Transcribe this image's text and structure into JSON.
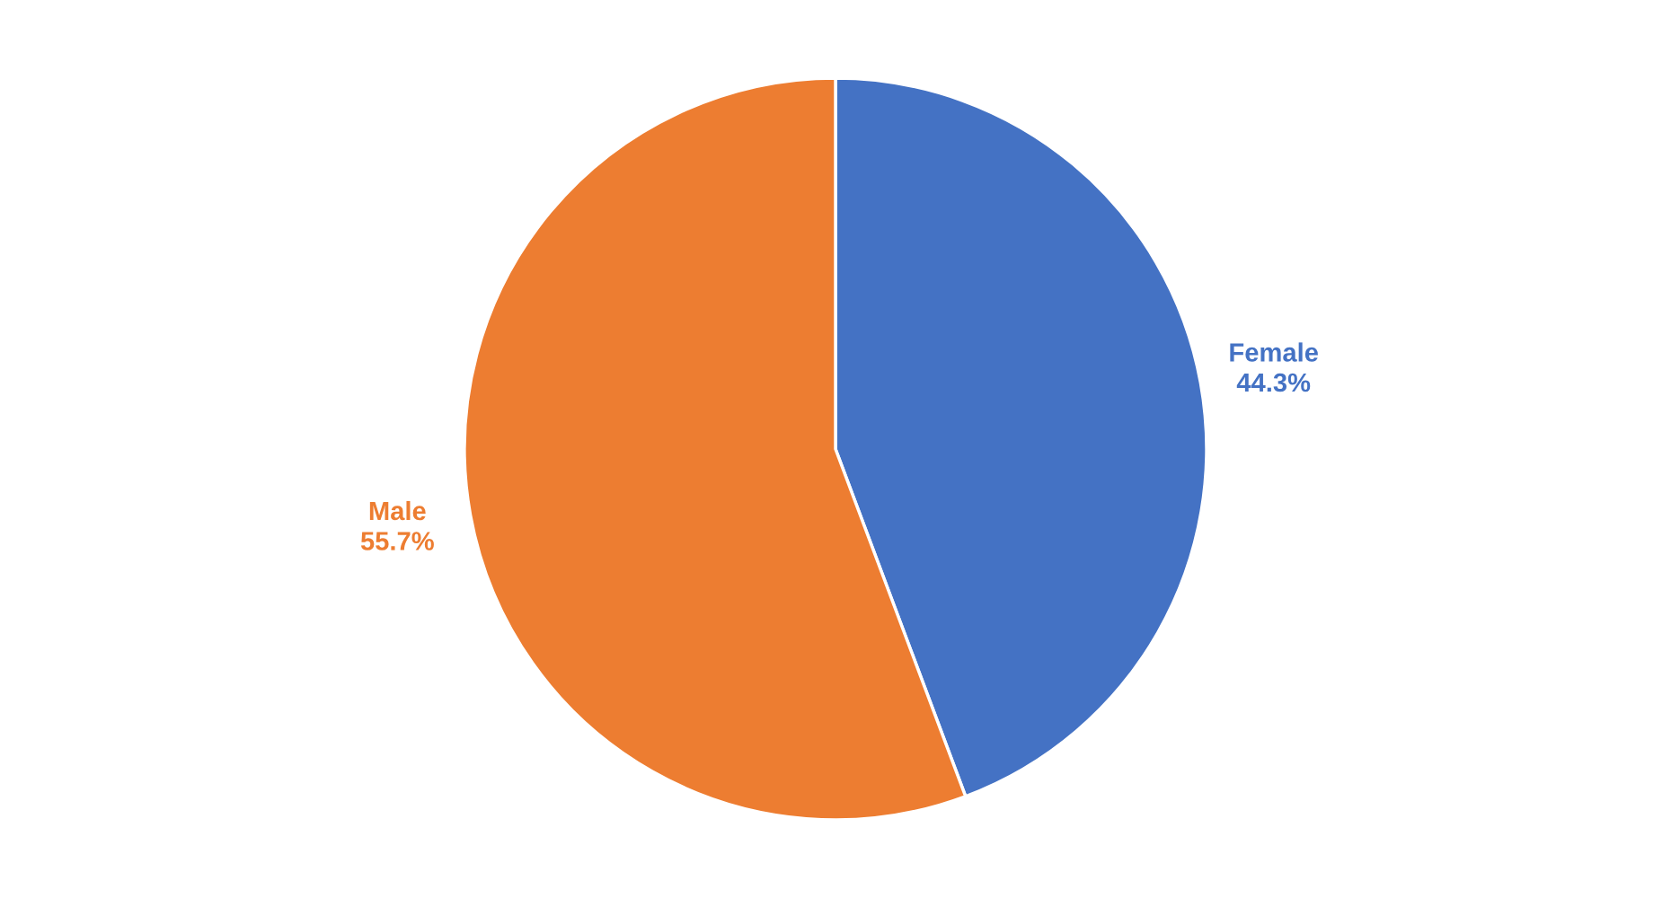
{
  "chart_data": {
    "type": "pie",
    "categories": [
      "Female",
      "Male"
    ],
    "values": [
      44.3,
      55.7
    ],
    "colors": [
      "#4472c4",
      "#ed7d31"
    ],
    "value_labels": [
      "44.3%",
      "55.7%"
    ]
  }
}
